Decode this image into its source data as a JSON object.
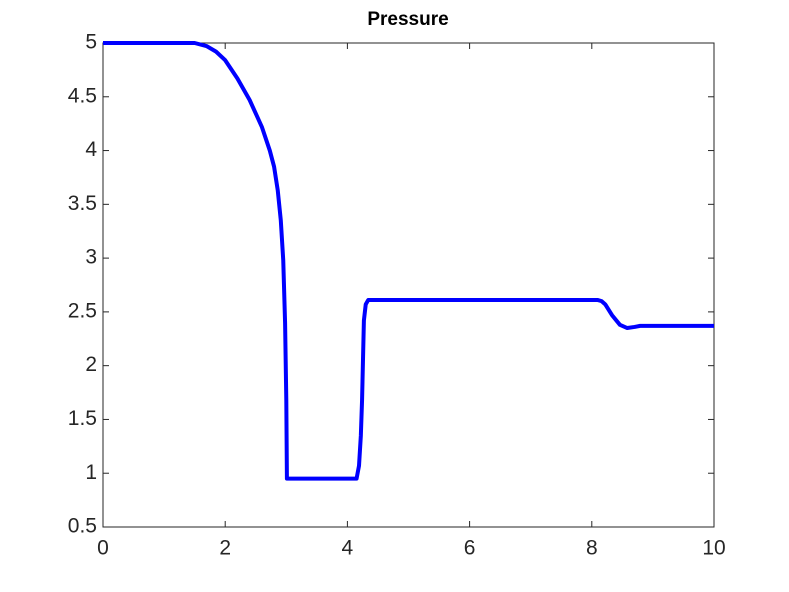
{
  "chart_data": {
    "type": "line",
    "title": "Pressure",
    "x": [
      0,
      1.0,
      1.5,
      1.7,
      1.85,
      2.0,
      2.2,
      2.4,
      2.6,
      2.73,
      2.8,
      2.86,
      2.91,
      2.95,
      2.98,
      3.0,
      3.01,
      3.5,
      4.0,
      4.15,
      4.19,
      4.22,
      4.24,
      4.27,
      4.3,
      4.34,
      5.0,
      6.0,
      7.0,
      8.0,
      8.1,
      8.16,
      8.22,
      8.33,
      8.46,
      8.58,
      8.7,
      8.79,
      9.0,
      10.0
    ],
    "series": [
      {
        "name": "Pressure",
        "color": "#0000ff",
        "values": [
          5,
          5,
          5,
          4.97,
          4.92,
          4.84,
          4.67,
          4.47,
          4.22,
          4.0,
          3.85,
          3.63,
          3.35,
          2.98,
          2.4,
          1.68,
          0.95,
          0.95,
          0.95,
          0.95,
          1.07,
          1.35,
          1.68,
          2.42,
          2.57,
          2.61,
          2.61,
          2.61,
          2.61,
          2.61,
          2.61,
          2.6,
          2.57,
          2.47,
          2.38,
          2.35,
          2.36,
          2.37,
          2.37,
          2.37
        ]
      }
    ],
    "xlim": [
      0,
      10
    ],
    "xticks": [
      0,
      2,
      4,
      6,
      8,
      10
    ],
    "ylim": [
      0.5,
      5
    ],
    "yticks": [
      0.5,
      1,
      1.5,
      2,
      2.5,
      3,
      3.5,
      4,
      4.5,
      5
    ]
  }
}
